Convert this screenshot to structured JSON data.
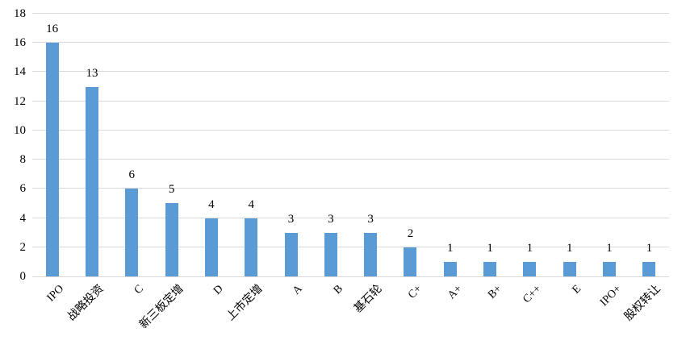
{
  "chart_data": {
    "type": "bar",
    "title": "",
    "xlabel": "",
    "ylabel": "",
    "categories": [
      "IPO",
      "战略投资",
      "C",
      "新三板定增",
      "D",
      "上市定增",
      "A",
      "B",
      "基石轮",
      "C+",
      "A+",
      "B+",
      "C++",
      "E",
      "IPO+",
      "股权转让"
    ],
    "values": [
      16,
      13,
      6,
      5,
      4,
      4,
      3,
      3,
      3,
      2,
      1,
      1,
      1,
      1,
      1,
      1
    ],
    "ylim": [
      0,
      18
    ],
    "yticks": [
      0,
      2,
      4,
      6,
      8,
      10,
      12,
      14,
      16,
      18
    ],
    "grid": "horizontal",
    "legend": "none",
    "data_labels": "outside-end",
    "x_label_rotation_deg": 45,
    "colors": {
      "bar": "#5B9BD5",
      "gridline": "#D9D9D9",
      "text": "#000000",
      "background": "#FFFFFF"
    }
  }
}
